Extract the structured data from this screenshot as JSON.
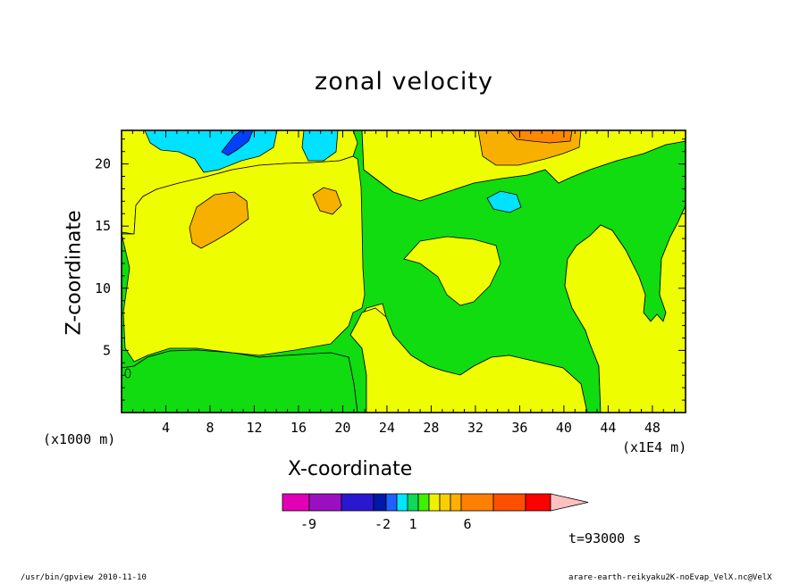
{
  "chart_data": {
    "type": "heatmap",
    "title": "zonal velocity",
    "xlabel": "X-coordinate",
    "ylabel": "Z-coordinate",
    "x_unit_note": "(x1000 m)",
    "x_unit_note2": "(x1E4 m)",
    "xlim": [
      0,
      51
    ],
    "ylim": [
      0,
      22.7
    ],
    "xticks": [
      4,
      8,
      12,
      16,
      20,
      24,
      28,
      32,
      36,
      40,
      44,
      48
    ],
    "yticks": [
      5,
      10,
      15,
      20
    ],
    "colorbar": {
      "labels": [
        {
          "text": "-9",
          "value": -9
        },
        {
          "text": "-2",
          "value": -2
        },
        {
          "text": "1",
          "value": 1
        },
        {
          "text": "6",
          "value": 6
        }
      ],
      "colors": [
        "#e200b4",
        "#9a10c0",
        "#2a18d0",
        "#0018a8",
        "#2060ff",
        "#00e6ff",
        "#10d858",
        "#40f000",
        "#f0f000",
        "#f8d000",
        "#ffb000",
        "#ff8000",
        "#ff5000",
        "#ff0000",
        "#ff8080",
        "#ffc0c0"
      ]
    },
    "time_label": "t=93000 s",
    "regions": [
      {
        "name": "positive-weak",
        "color": "#eefe00"
      },
      {
        "name": "near-zero",
        "color": "#10dc10"
      },
      {
        "name": "negative-weak",
        "color": "#00e2ff"
      },
      {
        "name": "negative-moderate",
        "color": "#0040ff"
      },
      {
        "name": "positive-moderate",
        "color": "#f8b000"
      },
      {
        "name": "positive-strong",
        "color": "#ff8800"
      }
    ]
  },
  "footer": {
    "left": "/usr/bin/gpview 2010-11-10",
    "right": "arare-earth-reikyaku2K-noEvap_VelX.nc@VelX"
  }
}
